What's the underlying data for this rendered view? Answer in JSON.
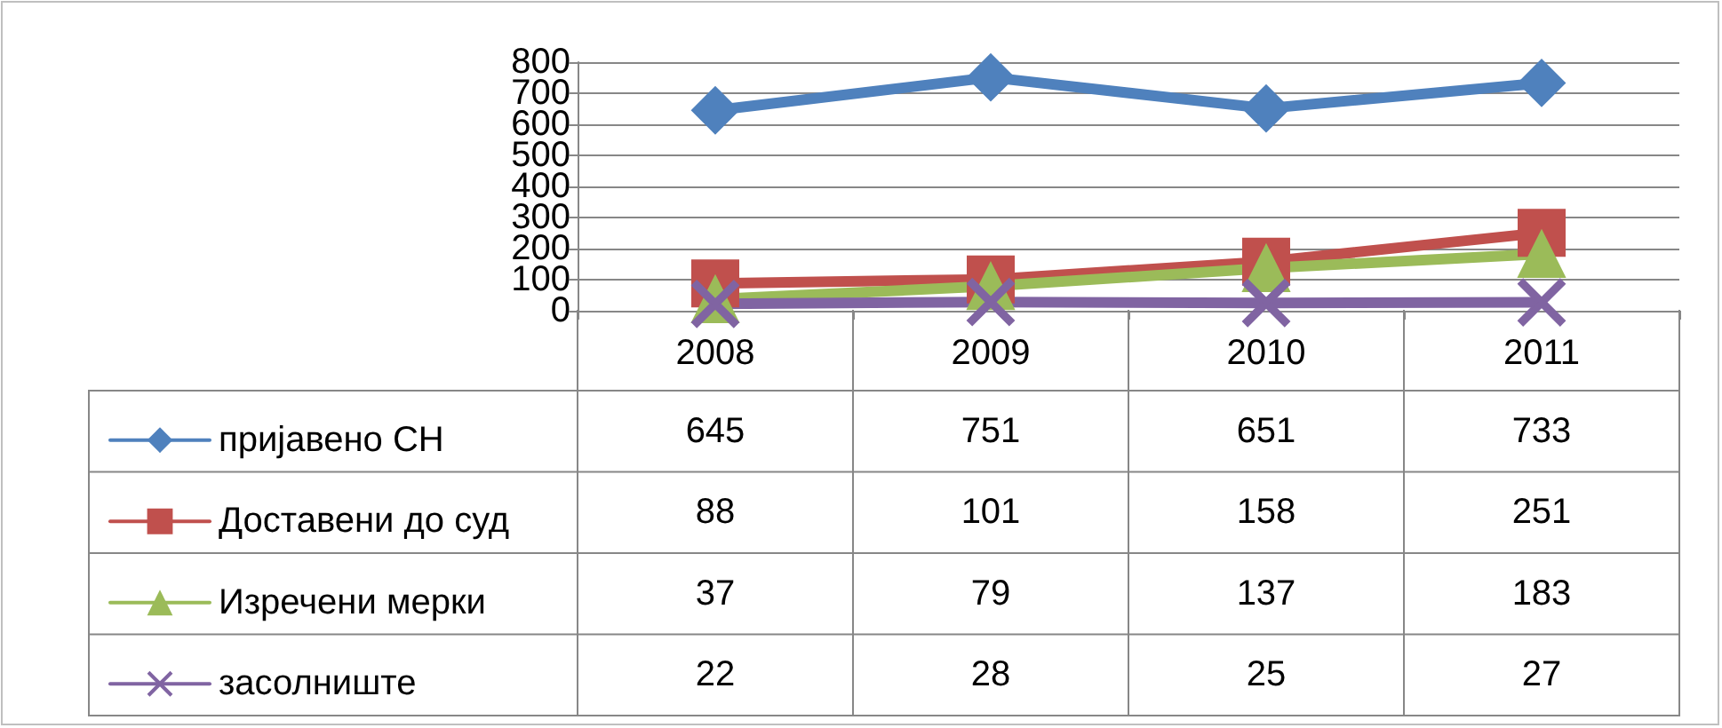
{
  "chart_data": {
    "type": "line",
    "categories": [
      "2008",
      "2009",
      "2010",
      "2011"
    ],
    "series": [
      {
        "name": "пријавено СН",
        "color": "#4f81bd",
        "marker": "diamond",
        "values": [
          645,
          751,
          651,
          733
        ]
      },
      {
        "name": "Доставени до суд",
        "color": "#c0504d",
        "marker": "square",
        "values": [
          88,
          101,
          158,
          251
        ]
      },
      {
        "name": "Изречени мерки",
        "color": "#9bbb59",
        "marker": "triangle",
        "values": [
          37,
          79,
          137,
          183
        ]
      },
      {
        "name": "засолниште",
        "color": "#8064a2",
        "marker": "cross",
        "values": [
          22,
          28,
          25,
          27
        ]
      }
    ],
    "ylim": [
      0,
      800
    ],
    "yticks": [
      0,
      100,
      200,
      300,
      400,
      500,
      600,
      700,
      800
    ],
    "grid": "y",
    "legend": "bottom left",
    "data_labels": true
  }
}
